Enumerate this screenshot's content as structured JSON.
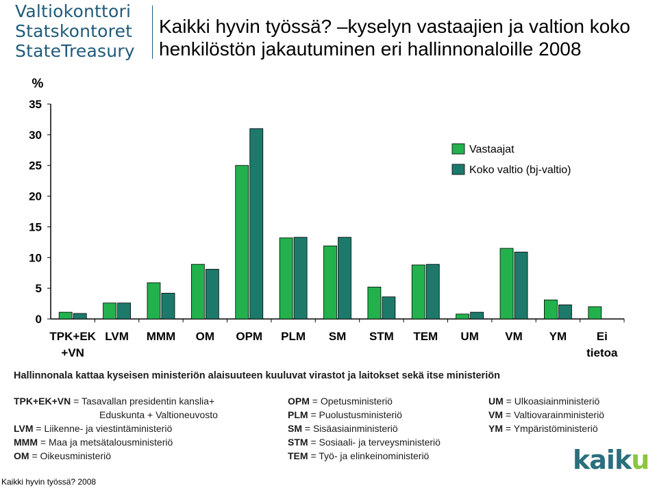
{
  "logo": {
    "lines": [
      "Valtiokonttori",
      "Statskontoret",
      "StateTreasury"
    ]
  },
  "title": "Kaikki hyvin työssä? –kyselyn vastaajien ja valtion koko henkilöstön jakautuminen eri hallinnonaloille 2008",
  "colors": {
    "respondents": "#22b14c",
    "total": "#1d7a6b",
    "axis": "#000000"
  },
  "chart_data": {
    "type": "bar",
    "title": "",
    "ylabel": "%",
    "xlabel": "",
    "ylim": [
      0,
      35
    ],
    "yticks": [
      0,
      5,
      10,
      15,
      20,
      25,
      30,
      35
    ],
    "categories": [
      [
        "TPK+EK",
        "+VN"
      ],
      [
        "LVM"
      ],
      [
        "MMM"
      ],
      [
        "OM"
      ],
      [
        "OPM"
      ],
      [
        "PLM"
      ],
      [
        "SM"
      ],
      [
        "STM"
      ],
      [
        "TEM"
      ],
      [
        "UM"
      ],
      [
        "VM"
      ],
      [
        "YM"
      ],
      [
        "Ei",
        "tietoa"
      ]
    ],
    "series": [
      {
        "name": "Vastaajat",
        "values": [
          1.1,
          2.6,
          5.9,
          8.9,
          25.0,
          13.2,
          11.9,
          5.2,
          8.8,
          0.8,
          11.5,
          3.1,
          2.0
        ]
      },
      {
        "name": "Koko valtio (bj-valtio)",
        "values": [
          0.9,
          2.6,
          4.2,
          8.1,
          31.0,
          13.3,
          13.3,
          3.6,
          8.9,
          1.1,
          10.9,
          2.3,
          null
        ]
      }
    ],
    "legend_position": "top-right",
    "grid": false
  },
  "description": "Hallinnonala kattaa kyseisen ministeriön alaisuuteen kuuluvat virastot ja laitokset sekä itse ministeriön",
  "abbreviations": {
    "col1": [
      {
        "key": "TPK+EK+VN",
        "sep": " = ",
        "text": "Tasavallan presidentin kanslia+"
      },
      {
        "key": "",
        "sep": "",
        "text": "Eduskunta + Valtioneuvosto"
      },
      {
        "key": "LVM",
        "sep": " = ",
        "text": "Liikenne- ja viestintäministeriö"
      },
      {
        "key": "MMM",
        "sep": " = ",
        "text": "Maa ja metsätalousministeriö"
      },
      {
        "key": "OM",
        "sep": " = ",
        "text": "Oikeusministeriö"
      }
    ],
    "col2": [
      {
        "key": "OPM",
        "sep": " = ",
        "text": "Opetusministeriö"
      },
      {
        "key": "PLM",
        "sep": " = ",
        "text": "Puolustusministeriö"
      },
      {
        "key": "SM",
        "sep": " = ",
        "text": "Sisäasiainministeriö"
      },
      {
        "key": "STM",
        "sep": " = ",
        "text": "Sosiaali- ja terveysministeriö"
      },
      {
        "key": "TEM",
        "sep": " = ",
        "text": "Työ- ja elinkeinoministeriö"
      }
    ],
    "col3": [
      {
        "key": "UM",
        "sep": " = ",
        "text": "Ulkoasiainministeriö"
      },
      {
        "key": "VM",
        "sep": " = ",
        "text": "Valtiovarainministeriö"
      },
      {
        "key": "YM",
        "sep": " = ",
        "text": "Ympäristöministeriö"
      }
    ]
  },
  "footer": "Kaikki hyvin työssä? 2008",
  "kaiku": {
    "main": "kaik",
    "accent": "u"
  }
}
